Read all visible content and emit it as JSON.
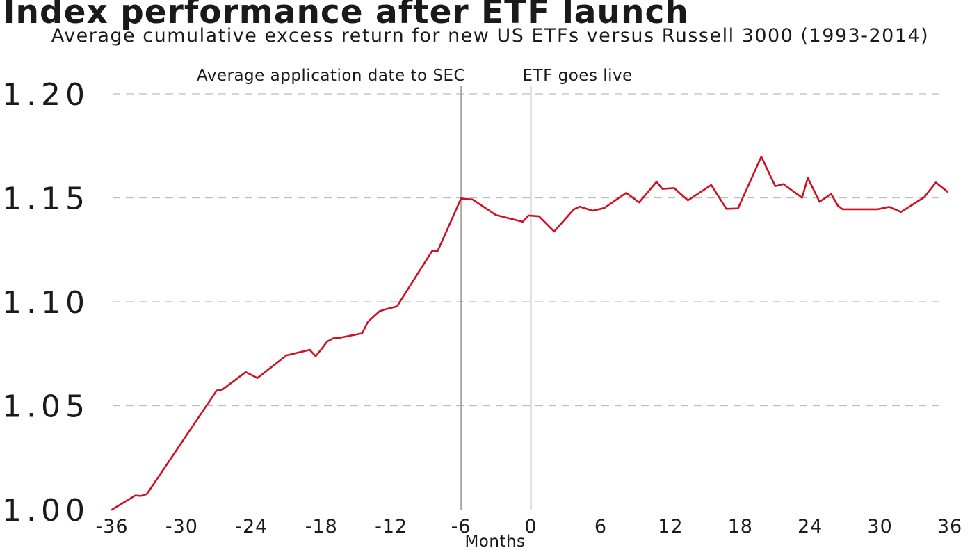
{
  "chart_data": {
    "type": "line",
    "title": "Index performance after ETF launch",
    "subtitle": "Average cumulative excess return for new US ETFs versus Russell 3000 (1993-2014)",
    "xlabel": "Months",
    "ylabel": "",
    "xlim": [
      -36,
      36
    ],
    "ylim": [
      1.0,
      1.2
    ],
    "grid": true,
    "x_ticks": [
      "-36",
      "-30",
      "-24",
      "-18",
      "-12",
      "-6",
      "0",
      "6",
      "12",
      "18",
      "24",
      "30",
      "36"
    ],
    "y_ticks": [
      "1.00",
      "1.05",
      "1.10",
      "1.15",
      "1.20"
    ],
    "annotations": [
      {
        "x": -6,
        "text": "Average application date to SEC"
      },
      {
        "x": 0,
        "text": "ETF goes live"
      }
    ],
    "color": "#cc1122",
    "series": [
      {
        "x": [
          -36,
          -34,
          -33.5,
          -33,
          -27,
          -26.5,
          -24.5,
          -23.5,
          -21,
          -19,
          -18.5,
          -18,
          -17.5,
          -17,
          -16.5,
          -14.5,
          -14,
          -13,
          -12.5,
          -11.5,
          -8.5,
          -8,
          -6,
          -5,
          -3,
          -0.7,
          -0.2,
          0.7,
          2,
          3.7,
          4.2,
          5.3,
          6.3,
          8.2,
          9.3,
          10.8,
          11.3,
          12.3,
          13.5,
          15.5,
          16.8,
          17.8,
          19.8,
          21,
          21.7,
          23.3,
          23.8,
          24.8,
          25.8,
          26.4,
          26.8,
          27.5,
          29.8,
          30.8,
          31.8,
          33.8,
          34.8,
          35.8
        ],
        "y": [
          1.0,
          1.0068,
          1.0066,
          1.0075,
          1.0573,
          1.0578,
          1.0662,
          1.0633,
          1.0742,
          1.0769,
          1.0738,
          1.0772,
          1.0809,
          1.0824,
          1.0826,
          1.0848,
          1.0904,
          1.0955,
          1.0964,
          1.0978,
          1.1243,
          1.1245,
          1.1497,
          1.1492,
          1.1417,
          1.1385,
          1.1415,
          1.1411,
          1.1338,
          1.1445,
          1.1458,
          1.1438,
          1.1451,
          1.1524,
          1.1478,
          1.1577,
          1.1543,
          1.1547,
          1.1488,
          1.1562,
          1.1447,
          1.1449,
          1.1698,
          1.1556,
          1.1566,
          1.1501,
          1.1596,
          1.1481,
          1.1519,
          1.1461,
          1.1445,
          1.1445,
          1.1445,
          1.1457,
          1.1432,
          1.1503,
          1.1574,
          1.1529
        ]
      }
    ]
  }
}
